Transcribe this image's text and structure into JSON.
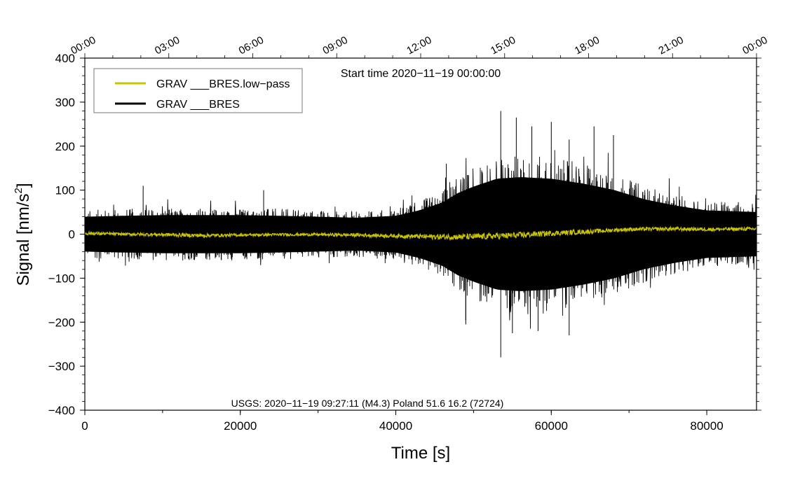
{
  "chart_data": {
    "type": "line",
    "xlabel": "Time [s]",
    "ylabel": "Signal [nm/s",
    "ylabel_sup": "2",
    "ylabel_close": "]",
    "xlim": [
      0,
      86400
    ],
    "ylim": [
      -400,
      400
    ],
    "x_ticks": [
      0,
      20000,
      40000,
      60000,
      80000
    ],
    "x_tick_labels": [
      "0",
      "20000",
      "40000",
      "60000",
      "80000"
    ],
    "y_ticks": [
      400,
      300,
      200,
      100,
      0,
      -100,
      -200,
      -300,
      -400
    ],
    "y_tick_labels": [
      "400",
      "300",
      "200",
      "100",
      "0",
      "−100",
      "−200",
      "−300",
      "−400"
    ],
    "top_axis_ticks_s": [
      0,
      10800,
      21600,
      32400,
      43200,
      54000,
      64800,
      75600,
      86400
    ],
    "top_axis_labels": [
      "00:00",
      "03:00",
      "06:00",
      "09:00",
      "12:00",
      "15:00",
      "18:00",
      "21:00",
      "00:00"
    ],
    "annotation": "Start time 2020−11−19 00:00:00",
    "event_label": "USGS: 2020−11−19 09:27:11 (M4.3) Poland 51.6 16.2 (72724)",
    "legend_position": "top-left",
    "series": [
      {
        "name": "GRAV ___BRES.low−pass",
        "color": "#c9c300",
        "envelope_x": [
          0,
          5000,
          10000,
          15000,
          20000,
          25000,
          30000,
          35000,
          40000,
          45000,
          50000,
          55000,
          60000,
          65000,
          70000,
          75000,
          80000,
          86400
        ],
        "envelope_amp": [
          4,
          3,
          4,
          4,
          3,
          3,
          3,
          4,
          4,
          6,
          7,
          7,
          6,
          5,
          4,
          4,
          4,
          4
        ],
        "trend_x": [
          0,
          5000,
          10000,
          15000,
          20000,
          25000,
          30000,
          35000,
          40000,
          45000,
          50000,
          55000,
          60000,
          65000,
          70000,
          75000,
          80000,
          86400
        ],
        "trend_y": [
          2,
          0,
          -1,
          -3,
          -2,
          -1,
          -1,
          -2,
          -4,
          -6,
          -6,
          -3,
          2,
          6,
          11,
          12,
          11,
          12
        ]
      },
      {
        "name": "GRAV ___BRES",
        "color": "#000000",
        "envelope_x": [
          0,
          5000,
          10000,
          15000,
          20000,
          25000,
          30000,
          35000,
          40000,
          43000,
          46000,
          48000,
          50000,
          53000,
          56000,
          60000,
          64000,
          68000,
          72000,
          76000,
          80000,
          86400
        ],
        "envelope_amp": [
          55,
          58,
          60,
          60,
          60,
          58,
          55,
          52,
          58,
          75,
          100,
          130,
          150,
          175,
          180,
          175,
          160,
          140,
          110,
          90,
          75,
          70
        ],
        "spikes_x": [
          7500,
          23000,
          46500,
          53500,
          55500,
          57500,
          60000,
          62300,
          65500,
          68000,
          49000
        ],
        "spikes_y": [
          110,
          100,
          160,
          280,
          265,
          245,
          255,
          215,
          245,
          225,
          -195
        ],
        "spikes_neg_x": [
          53500,
          62300,
          58300,
          49000,
          55000
        ],
        "spikes_neg_y": [
          -280,
          -230,
          -220,
          -205,
          -225
        ]
      }
    ]
  }
}
